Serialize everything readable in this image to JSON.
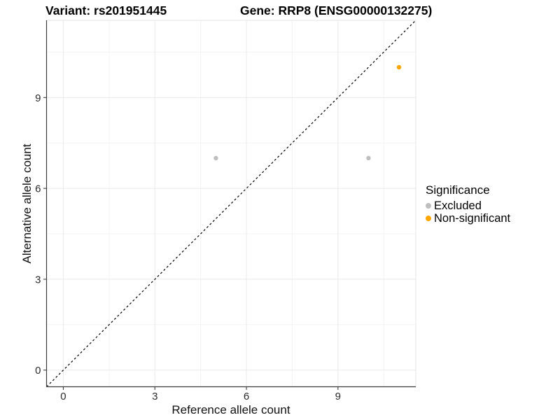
{
  "header": {
    "variant_title": "Variant: rs201951445",
    "gene_title": "Gene: RRP8 (ENSG00000132275)"
  },
  "chart_data": {
    "type": "scatter",
    "title": "",
    "xlabel": "Reference allele count",
    "ylabel": "Alternative allele count",
    "xlim": [
      -0.55,
      11.55
    ],
    "ylim": [
      -0.55,
      11.55
    ],
    "x_ticks": [
      0,
      3,
      6,
      9
    ],
    "y_ticks": [
      0,
      3,
      6,
      9
    ],
    "x_minor_ticks": [
      1.5,
      4.5,
      7.5,
      10.5
    ],
    "y_minor_ticks": [
      1.5,
      4.5,
      7.5,
      10.5
    ],
    "grid": true,
    "series": [
      {
        "name": "Excluded",
        "color": "#BEBEBE",
        "points": [
          [
            5,
            7
          ],
          [
            10,
            7
          ]
        ]
      },
      {
        "name": "Non-significant",
        "color": "#FFA500",
        "points": [
          [
            11,
            10
          ]
        ]
      }
    ],
    "reference_line": {
      "type": "identity",
      "slope": 1,
      "intercept": 0,
      "style": "dashed",
      "color": "#000000"
    },
    "legend": {
      "title": "Significance",
      "position": "right"
    },
    "style": {
      "background": "#FFFFFF",
      "grid_major_color": "#E9E9E9",
      "grid_minor_color": "#F3F3F3",
      "panel_border_color": "#E4E4E4",
      "axis_line_color": "#3C3C3C",
      "point_radius": 3.2
    }
  }
}
